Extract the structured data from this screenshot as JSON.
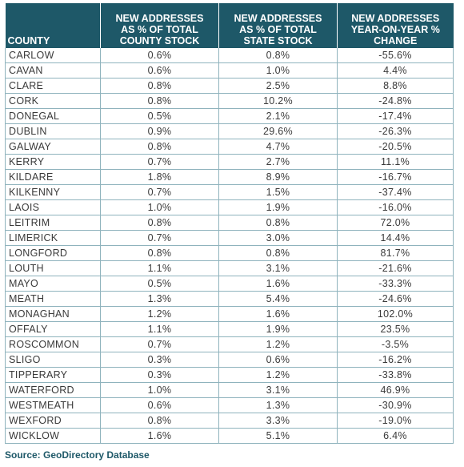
{
  "table": {
    "headers": {
      "county": "COUNTY",
      "county_stock": [
        "NEW ADDRESSES",
        "AS % OF TOTAL",
        "COUNTY STOCK"
      ],
      "state_stock": [
        "NEW ADDRESSES",
        "AS % OF TOTAL",
        "STATE STOCK"
      ],
      "yoy_change": [
        "NEW ADDRESSES",
        "YEAR-ON-YEAR %",
        "CHANGE"
      ]
    },
    "rows": [
      [
        "CARLOW",
        "0.6%",
        "0.8%",
        "-55.6%"
      ],
      [
        "CAVAN",
        "0.6%",
        "1.0%",
        "4.4%"
      ],
      [
        "CLARE",
        "0.8%",
        "2.5%",
        "8.8%"
      ],
      [
        "CORK",
        "0.8%",
        "10.2%",
        "-24.8%"
      ],
      [
        "DONEGAL",
        "0.5%",
        "2.1%",
        "-17.4%"
      ],
      [
        "DUBLIN",
        "0.9%",
        "29.6%",
        "-26.3%"
      ],
      [
        "GALWAY",
        "0.8%",
        "4.7%",
        "-20.5%"
      ],
      [
        "KERRY",
        "0.7%",
        "2.7%",
        "11.1%"
      ],
      [
        "KILDARE",
        "1.8%",
        "8.9%",
        "-16.7%"
      ],
      [
        "KILKENNY",
        "0.7%",
        "1.5%",
        "-37.4%"
      ],
      [
        "LAOIS",
        "1.0%",
        "1.9%",
        "-16.0%"
      ],
      [
        "LEITRIM",
        "0.8%",
        "0.8%",
        "72.0%"
      ],
      [
        "LIMERICK",
        "0.7%",
        "3.0%",
        "14.4%"
      ],
      [
        "LONGFORD",
        "0.8%",
        "0.8%",
        "81.7%"
      ],
      [
        "LOUTH",
        "1.1%",
        "3.1%",
        "-21.6%"
      ],
      [
        "MAYO",
        "0.5%",
        "1.6%",
        "-33.3%"
      ],
      [
        "MEATH",
        "1.3%",
        "5.4%",
        "-24.6%"
      ],
      [
        "MONAGHAN",
        "1.2%",
        "1.6%",
        "102.0%"
      ],
      [
        "OFFALY",
        "1.1%",
        "1.9%",
        "23.5%"
      ],
      [
        "ROSCOMMON",
        "0.7%",
        "1.2%",
        "-3.5%"
      ],
      [
        "SLIGO",
        "0.3%",
        "0.6%",
        "-16.2%"
      ],
      [
        "TIPPERARY",
        "0.3%",
        "1.2%",
        "-33.8%"
      ],
      [
        "WATERFORD",
        "1.0%",
        "3.1%",
        "46.9%"
      ],
      [
        "WESTMEATH",
        "0.6%",
        "1.3%",
        "-30.9%"
      ],
      [
        "WEXFORD",
        "0.8%",
        "3.3%",
        "-19.0%"
      ],
      [
        "WICKLOW",
        "1.6%",
        "5.1%",
        "6.4%"
      ]
    ]
  },
  "source": "Source: GeoDirectory Database",
  "colors": {
    "header_bg": "#1e5868",
    "header_text": "#ffffff",
    "grid": "#8fb3bd",
    "source_text": "#1e5868"
  }
}
